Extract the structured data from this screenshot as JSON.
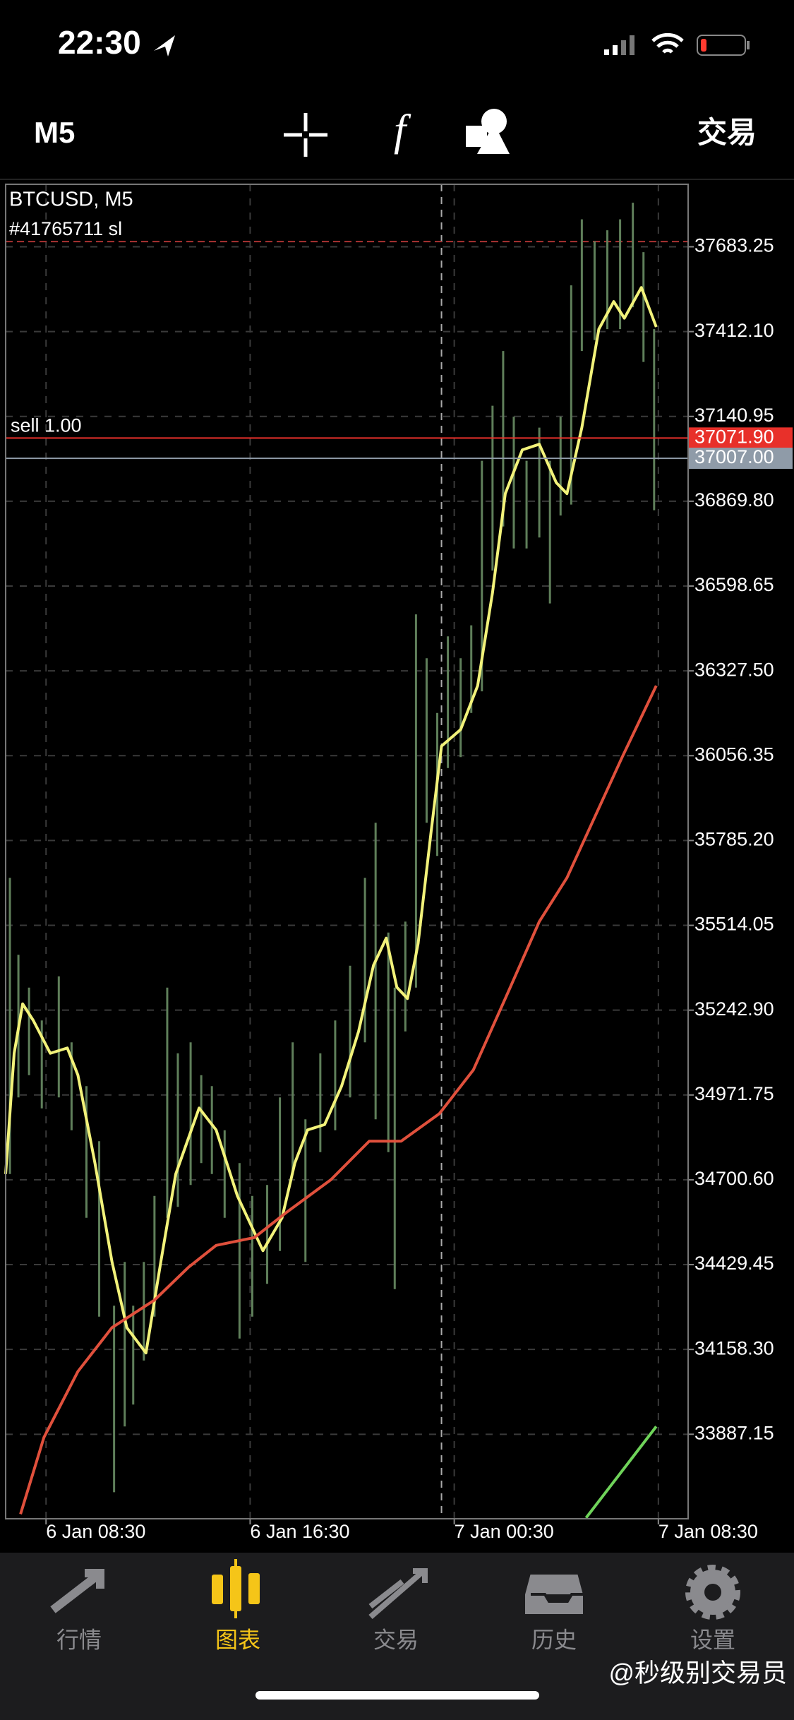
{
  "status_bar": {
    "time": "22:30"
  },
  "toolbar": {
    "timeframe": "M5",
    "trade": "交易"
  },
  "chart_data": {
    "type": "range_bar",
    "symbol_label": "BTCUSD, M5",
    "order_label": "#41765711 sl",
    "position_label": "sell 1.00",
    "xlim": [
      -19,
      302
    ],
    "xticks": [
      {
        "value": 0,
        "label": "6 Jan 08:30"
      },
      {
        "value": 96,
        "label": "6 Jan 16:30"
      },
      {
        "value": 192,
        "label": "7 Jan 00:30"
      },
      {
        "value": 288,
        "label": "7 Jan 08:30"
      }
    ],
    "ylim": [
      33617,
      37883
    ],
    "yticks": [
      37683.25,
      {
        "value": 37412.1,
        "label": "37412.10"
      },
      37140.95,
      {
        "value": 36869.8,
        "label": "36869.80"
      },
      36598.65,
      {
        "value": 36327.5,
        "label": "36327.50"
      },
      36056.35,
      {
        "value": 35785.2,
        "label": "35785.20"
      },
      35514.05,
      {
        "value": 35242.9,
        "label": "35242.90"
      },
      34971.75,
      {
        "value": 34700.6,
        "label": "34700.60"
      },
      34429.45,
      {
        "value": 34158.3,
        "label": "34158.30"
      },
      33887.15
    ],
    "grid": true,
    "separator_x": 186,
    "sl_level": 37700,
    "bars": {
      "color": "#5f7f5a",
      "x": [
        -17,
        -13,
        -8,
        -2,
        6,
        12,
        19,
        25,
        32,
        37,
        41,
        46,
        51,
        57,
        62,
        68,
        73,
        78,
        84,
        91,
        97,
        104,
        110,
        116,
        122,
        129,
        136,
        143,
        150,
        155,
        161,
        164,
        169,
        174,
        179,
        184,
        189,
        195,
        200,
        205,
        210,
        215,
        220,
        226,
        232,
        237,
        242,
        247,
        252,
        258,
        264,
        270,
        276,
        281,
        286
      ],
      "high": [
        35666,
        35420,
        35315,
        35210,
        35351,
        35140,
        35000,
        34824,
        34298,
        34438,
        34298,
        34438,
        34649,
        35315,
        35105,
        35140,
        35035,
        35000,
        34859,
        34754,
        34649,
        34684,
        34964,
        35140,
        34894,
        35105,
        35210,
        35385,
        35666,
        35842,
        35491,
        35315,
        35526,
        36508,
        36368,
        36193,
        36438,
        36368,
        36473,
        36999,
        37175,
        37350,
        37140,
        36999,
        37105,
        36999,
        37140,
        37560,
        37771,
        37701,
        37736,
        37771,
        37824,
        37666,
        37420
      ],
      "low": [
        34719,
        34964,
        35035,
        34929,
        34964,
        34859,
        34579,
        34263,
        33702,
        33912,
        33982,
        34123,
        34263,
        34579,
        34614,
        34684,
        34754,
        34719,
        34579,
        34193,
        34263,
        34368,
        34473,
        34719,
        34438,
        34789,
        34859,
        34964,
        35140,
        34894,
        34789,
        34351,
        35175,
        35315,
        35842,
        35736,
        36017,
        36052,
        36193,
        36262,
        36648,
        36789,
        36719,
        36719,
        36754,
        36543,
        36824,
        36859,
        37350,
        37385,
        37420,
        37420,
        37490,
        37315,
        36841
      ]
    },
    "series": [
      {
        "color": "#f2f27a",
        "x": [
          -19,
          -15,
          -11,
          -6,
          2,
          10,
          15,
          23,
          31,
          38,
          47,
          54,
          61,
          72,
          80,
          90,
          102,
          111,
          117,
          123,
          131,
          139,
          147,
          154,
          160,
          165,
          170,
          175,
          181,
          186,
          195,
          203,
          210,
          216,
          224,
          232,
          240,
          245,
          252,
          260,
          267,
          272,
          280,
          287
        ],
        "values": [
          34719,
          35105,
          35263,
          35210,
          35105,
          35122,
          35035,
          34754,
          34439,
          34228,
          34147,
          34439,
          34719,
          34930,
          34860,
          34649,
          34474,
          34579,
          34754,
          34860,
          34877,
          35000,
          35175,
          35386,
          35473,
          35316,
          35280,
          35456,
          35807,
          36087,
          36140,
          36280,
          36578,
          36894,
          37034,
          37052,
          36929,
          36894,
          37105,
          37420,
          37508,
          37455,
          37553,
          37427
        ]
      },
      {
        "color": "#e0503c",
        "x": [
          -12,
          -1,
          15,
          31,
          51,
          67,
          80,
          98,
          113,
          134,
          152,
          167,
          185,
          201,
          216,
          232,
          245,
          258,
          271,
          287
        ],
        "values": [
          33632,
          33877,
          34088,
          34228,
          34316,
          34421,
          34491,
          34516,
          34596,
          34701,
          34824,
          34824,
          34912,
          35052,
          35280,
          35526,
          35666,
          35859,
          36052,
          36280
        ]
      },
      {
        "color": "#6fd35a",
        "x": [
          254,
          287
        ],
        "values": [
          33620,
          33912
        ]
      }
    ],
    "price_lines": [
      {
        "value": 37071.9,
        "label": "37071.90",
        "color": "#e8302a"
      },
      {
        "value": 37007,
        "label": "37007.00",
        "color": "#8f9ba8"
      }
    ]
  },
  "tabs": [
    {
      "label": "行情"
    },
    {
      "label": "图表"
    },
    {
      "label": "交易"
    },
    {
      "label": "历史"
    },
    {
      "label": "设置"
    }
  ],
  "active_tab": 1,
  "watermark": "@秒级别交易员"
}
